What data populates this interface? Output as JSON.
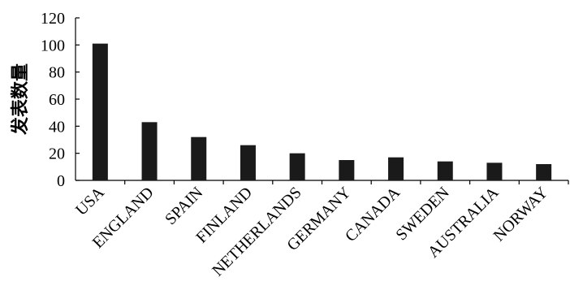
{
  "chart_data": {
    "type": "bar",
    "categories": [
      "USA",
      "ENGLAND",
      "SPAIN",
      "FINLAND",
      "NETHERLANDS",
      "GERMANY",
      "CANADA",
      "SWEDEN",
      "AUSTRALIA",
      "NORWAY"
    ],
    "values": [
      101,
      43,
      32,
      26,
      20,
      15,
      17,
      14,
      13,
      12
    ],
    "ylabel": "发表数量",
    "xlabel": "",
    "ylim": [
      0,
      120
    ],
    "yticks": [
      0,
      20,
      40,
      60,
      80,
      100,
      120
    ],
    "bar_color": "#1a1a1a",
    "grid": false,
    "legend": "none"
  }
}
